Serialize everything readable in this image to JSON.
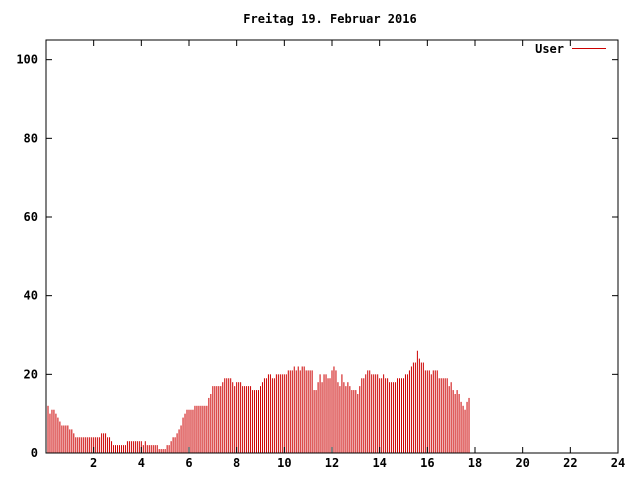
{
  "chart_data": {
    "type": "bar",
    "title": "Freitag 19. Februar 2016",
    "xlabel": "",
    "ylabel": "",
    "xlim": [
      0,
      24
    ],
    "ylim": [
      0,
      105
    ],
    "xticks": [
      2,
      4,
      6,
      8,
      10,
      12,
      14,
      16,
      18,
      20,
      22,
      24
    ],
    "yticks": [
      0,
      20,
      40,
      60,
      80,
      100
    ],
    "x_tick_labels": [
      "2",
      "4",
      "6",
      "8",
      "10",
      "12",
      "14",
      "16",
      "18",
      "20",
      "22",
      "24"
    ],
    "y_tick_labels": [
      "0",
      "20",
      "40",
      "60",
      "80",
      "100"
    ],
    "grid": false,
    "legend_position": "top-right",
    "colors": {
      "series": "#cc0000",
      "axes": "#000000",
      "background": "#ffffff"
    },
    "series": [
      {
        "name": "User",
        "sample_interval_hours": 0.08333,
        "values": [
          12,
          12,
          10,
          11,
          11,
          10,
          9,
          8,
          7,
          7,
          7,
          7,
          6,
          6,
          5,
          4,
          4,
          4,
          4,
          4,
          4,
          4,
          4,
          4,
          4,
          4,
          4,
          4,
          5,
          5,
          5,
          4,
          4,
          3,
          2,
          2,
          2,
          2,
          2,
          2,
          2,
          3,
          3,
          3,
          3,
          3,
          3,
          3,
          3,
          2,
          3,
          2,
          2,
          2,
          2,
          2,
          2,
          1,
          1,
          1,
          1,
          2,
          2,
          3,
          4,
          4,
          5,
          6,
          7,
          9,
          10,
          11,
          11,
          11,
          11,
          12,
          12,
          12,
          12,
          12,
          12,
          12,
          14,
          15,
          17,
          17,
          17,
          17,
          17,
          18,
          19,
          19,
          19,
          19,
          18,
          17,
          18,
          18,
          18,
          17,
          17,
          17,
          17,
          17,
          16,
          16,
          16,
          16,
          17,
          18,
          19,
          19,
          20,
          20,
          19,
          19,
          20,
          20,
          20,
          20,
          20,
          20,
          21,
          21,
          21,
          22,
          21,
          22,
          21,
          22,
          22,
          21,
          21,
          21,
          21,
          16,
          16,
          18,
          20,
          18,
          20,
          20,
          19,
          19,
          21,
          22,
          21,
          18,
          17,
          20,
          18,
          17,
          18,
          17,
          16,
          16,
          16,
          15,
          17,
          19,
          19,
          20,
          21,
          21,
          20,
          20,
          20,
          20,
          19,
          19,
          20,
          19,
          19,
          18,
          18,
          18,
          18,
          19,
          19,
          19,
          19,
          20,
          20,
          21,
          22,
          23,
          23,
          26,
          24,
          23,
          23,
          21,
          21,
          21,
          20,
          21,
          21,
          21,
          19,
          19,
          19,
          19,
          19,
          17,
          18,
          16,
          15,
          16,
          15,
          13,
          12,
          11,
          13,
          14
        ]
      }
    ]
  }
}
